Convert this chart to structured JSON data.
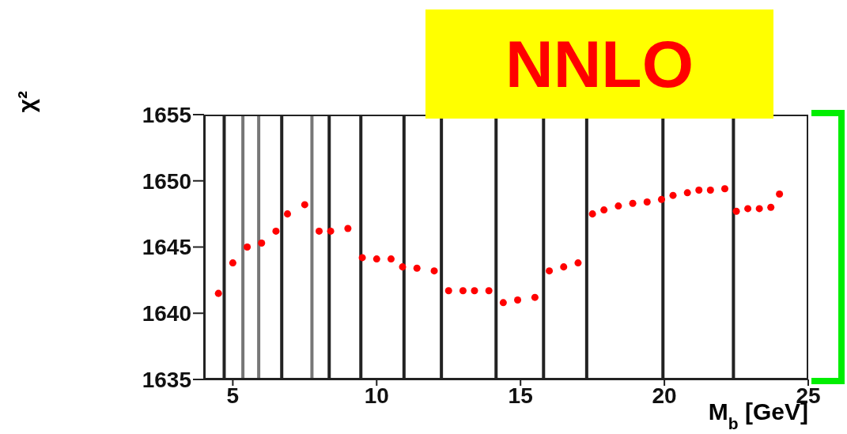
{
  "chart_data": {
    "type": "scatter",
    "ylabel": "χ²",
    "xlabel": "M$_{b}$ [GeV]",
    "annotations": [
      "NNLO"
    ],
    "x": [
      4.5,
      5.0,
      5.5,
      6.0,
      6.5,
      6.9,
      7.5,
      8.0,
      8.4,
      9.0,
      9.5,
      10.0,
      10.5,
      10.9,
      11.4,
      12.0,
      12.5,
      13.0,
      13.4,
      13.9,
      14.4,
      14.9,
      15.5,
      16.0,
      16.5,
      17.0,
      17.5,
      17.9,
      18.4,
      18.9,
      19.4,
      19.9,
      20.3,
      20.8,
      21.2,
      21.6,
      22.1,
      22.5,
      22.9,
      23.3,
      23.7,
      24.0
    ],
    "series": [
      {
        "color": "#ff0000",
        "values": [
          1641.5,
          1643.8,
          1645.0,
          1645.3,
          1646.2,
          1647.5,
          1648.2,
          1646.2,
          1646.2,
          1646.4,
          1644.2,
          1644.1,
          1644.1,
          1643.5,
          1643.4,
          1643.2,
          1641.7,
          1641.7,
          1641.7,
          1641.7,
          1640.8,
          1641.0,
          1641.2,
          1643.2,
          1643.5,
          1643.8,
          1647.5,
          1647.8,
          1648.1,
          1648.3,
          1648.4,
          1648.6,
          1648.9,
          1649.1,
          1649.3,
          1649.3,
          1649.4,
          1647.7,
          1647.9,
          1647.9,
          1648.0,
          1649.0
        ]
      }
    ],
    "marker": "circle",
    "xlim": [
      4,
      25
    ],
    "xticks": [
      5,
      10,
      15,
      20,
      25
    ],
    "ylim": [
      1635,
      1655
    ],
    "yticks": [
      1635,
      1640,
      1645,
      1650,
      1655
    ],
    "ref_lines": [
      {
        "axis": "x",
        "value": 4.7,
        "color": "#222222"
      },
      {
        "axis": "x",
        "value": 5.35,
        "color": "#777777"
      },
      {
        "axis": "x",
        "value": 5.9,
        "color": "#777777"
      },
      {
        "axis": "x",
        "value": 6.7,
        "color": "#222222"
      },
      {
        "axis": "x",
        "value": 7.75,
        "color": "#777777"
      },
      {
        "axis": "x",
        "value": 8.35,
        "color": "#222222"
      },
      {
        "axis": "x",
        "value": 9.45,
        "color": "#222222"
      },
      {
        "axis": "x",
        "value": 10.95,
        "color": "#222222"
      },
      {
        "axis": "x",
        "value": 12.25,
        "color": "#222222"
      },
      {
        "axis": "x",
        "value": 14.15,
        "color": "#222222"
      },
      {
        "axis": "x",
        "value": 15.8,
        "color": "#222222"
      },
      {
        "axis": "x",
        "value": 17.3,
        "color": "#222222"
      },
      {
        "axis": "x",
        "value": 19.95,
        "color": "#222222"
      },
      {
        "axis": "x",
        "value": 22.4,
        "color": "#222222"
      }
    ]
  }
}
